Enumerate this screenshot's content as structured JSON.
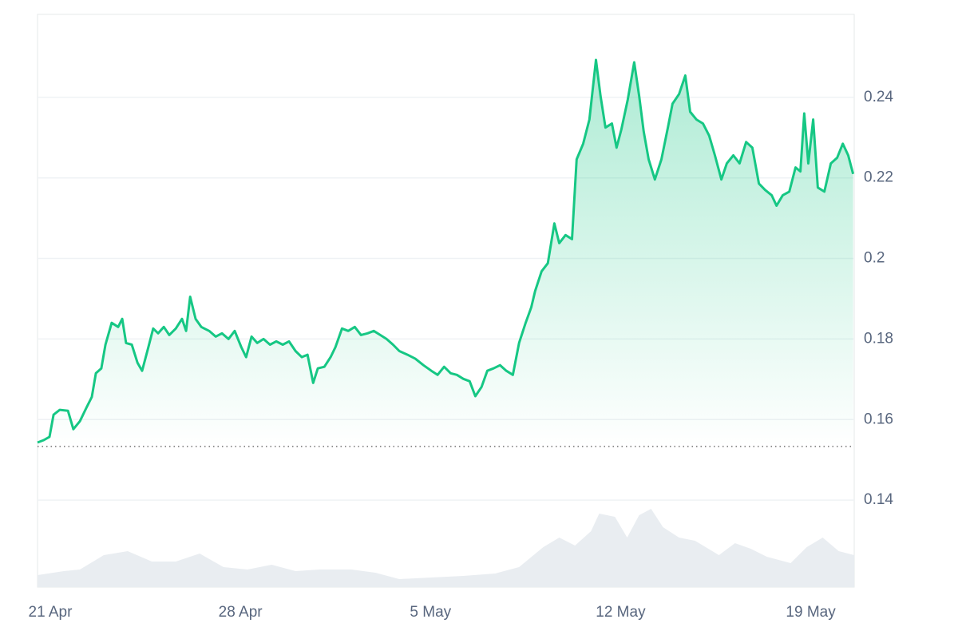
{
  "chart_data": {
    "type": "area",
    "price": {
      "color": "#16c784",
      "x": [
        -0.47,
        -0.24,
        -0.03,
        0.12,
        0.35,
        0.65,
        0.85,
        1.09,
        1.32,
        1.53,
        1.68,
        1.88,
        2.03,
        2.26,
        2.5,
        2.65,
        2.79,
        3.0,
        3.21,
        3.38,
        3.59,
        3.79,
        3.97,
        4.18,
        4.38,
        4.62,
        4.85,
        5.0,
        5.15,
        5.35,
        5.56,
        5.85,
        6.09,
        6.32,
        6.56,
        6.79,
        7.03,
        7.21,
        7.41,
        7.62,
        7.85,
        8.09,
        8.32,
        8.56,
        8.79,
        9.03,
        9.26,
        9.47,
        9.68,
        9.85,
        10.09,
        10.32,
        10.5,
        10.74,
        10.97,
        11.21,
        11.44,
        11.68,
        11.91,
        12.15,
        12.38,
        12.62,
        12.85,
        13.15,
        13.44,
        13.74,
        14.03,
        14.26,
        14.5,
        14.74,
        14.97,
        15.21,
        15.44,
        15.65,
        15.88,
        16.09,
        16.32,
        16.56,
        16.79,
        17.03,
        17.26,
        17.5,
        17.71,
        17.85,
        18.09,
        18.32,
        18.56,
        18.74,
        18.97,
        19.21,
        19.38,
        19.62,
        19.85,
        20.09,
        20.26,
        20.44,
        20.68,
        20.85,
        21.03,
        21.26,
        21.5,
        21.68,
        21.85,
        22.03,
        22.26,
        22.5,
        22.74,
        22.91,
        23.15,
        23.38,
        23.56,
        23.79,
        24.03,
        24.26,
        24.47,
        24.71,
        24.91,
        25.15,
        25.38,
        25.62,
        25.85,
        26.09,
        26.32,
        26.56,
        26.74,
        26.97,
        27.21,
        27.44,
        27.62,
        27.76,
        27.91,
        28.09,
        28.26,
        28.5,
        28.74,
        28.97,
        29.18,
        29.38,
        29.56
      ],
      "values": [
        0.1543,
        0.1549,
        0.1557,
        0.1612,
        0.1624,
        0.1622,
        0.1576,
        0.1596,
        0.1628,
        0.1656,
        0.1715,
        0.1727,
        0.1786,
        0.184,
        0.183,
        0.185,
        0.179,
        0.1786,
        0.1741,
        0.1721,
        0.1774,
        0.1826,
        0.1814,
        0.183,
        0.181,
        0.1826,
        0.185,
        0.182,
        0.1905,
        0.185,
        0.183,
        0.182,
        0.1806,
        0.1814,
        0.18,
        0.182,
        0.178,
        0.1755,
        0.1806,
        0.179,
        0.18,
        0.1786,
        0.1794,
        0.1786,
        0.1794,
        0.177,
        0.1755,
        0.1761,
        0.1691,
        0.1727,
        0.1731,
        0.1755,
        0.178,
        0.1826,
        0.182,
        0.183,
        0.181,
        0.1814,
        0.182,
        0.181,
        0.18,
        0.1786,
        0.177,
        0.1761,
        0.1751,
        0.1735,
        0.1721,
        0.1711,
        0.1731,
        0.1715,
        0.1711,
        0.1701,
        0.1695,
        0.1658,
        0.1681,
        0.1721,
        0.1727,
        0.1735,
        0.1721,
        0.1711,
        0.179,
        0.184,
        0.1879,
        0.1919,
        0.1968,
        0.1988,
        0.2087,
        0.2038,
        0.2058,
        0.2048,
        0.2246,
        0.2285,
        0.2345,
        0.2493,
        0.2404,
        0.2325,
        0.2335,
        0.2275,
        0.2321,
        0.2394,
        0.2487,
        0.2404,
        0.2315,
        0.2246,
        0.2196,
        0.2246,
        0.2325,
        0.2384,
        0.2408,
        0.2454,
        0.2364,
        0.2345,
        0.2335,
        0.2305,
        0.2256,
        0.2196,
        0.2236,
        0.2256,
        0.2236,
        0.2289,
        0.2275,
        0.2186,
        0.217,
        0.2157,
        0.2131,
        0.2157,
        0.2166,
        0.2226,
        0.2216,
        0.236,
        0.2236,
        0.2345,
        0.2176,
        0.2166,
        0.2236,
        0.225,
        0.2285,
        0.2256,
        0.221
      ]
    },
    "volume": {
      "color": "#e9edf1",
      "x": [
        -0.47,
        0.5,
        1.09,
        1.97,
        2.85,
        3.74,
        4.62,
        5.5,
        6.38,
        7.26,
        8.15,
        9.03,
        9.91,
        11.09,
        11.97,
        12.85,
        14.03,
        15.21,
        16.38,
        17.26,
        18.15,
        18.74,
        19.32,
        19.91,
        20.21,
        20.79,
        21.24,
        21.68,
        22.12,
        22.56,
        23.15,
        23.74,
        24.62,
        25.21,
        25.79,
        26.38,
        27.26,
        27.85,
        28.44,
        29.03,
        29.6
      ],
      "values": [
        15,
        20,
        22,
        40,
        45,
        32,
        32,
        42,
        25,
        22,
        28,
        20,
        22,
        22,
        18,
        10,
        12,
        14,
        17,
        25,
        50,
        62,
        52,
        70,
        92,
        88,
        62,
        90,
        98,
        75,
        62,
        58,
        40,
        55,
        48,
        38,
        30,
        50,
        62,
        45,
        40
      ]
    },
    "baseline": 0.1533,
    "xlim": [
      -0.47,
      29.6
    ],
    "xticks": [
      {
        "value": 0,
        "label": "21 Apr"
      },
      {
        "value": 7,
        "label": "28 Apr"
      },
      {
        "value": 14,
        "label": "5 May"
      },
      {
        "value": 21,
        "label": "12 May"
      },
      {
        "value": 28,
        "label": "19 May"
      }
    ],
    "ylim": [
      0.1184,
      0.2606
    ],
    "yticks": [
      0.14,
      0.16,
      0.18,
      0.2,
      0.22,
      0.24
    ],
    "y2lim": [
      0,
      100
    ],
    "grid": true
  }
}
